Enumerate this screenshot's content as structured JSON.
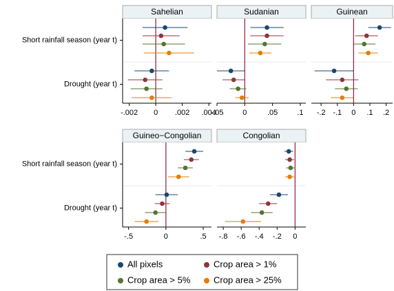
{
  "chart_data": [
    {
      "type": "dot",
      "title": "Sahelian",
      "categories": [
        "Short rainfall season (year t)",
        "Drought (year t)"
      ],
      "xlim": [
        -0.0025,
        0.0042
      ],
      "xticks": [
        {
          "value": -0.002,
          "label": "-.002"
        },
        0,
        {
          "value": 0.002,
          "label": ".002"
        },
        {
          "value": 0.004,
          "label": ".004"
        }
      ],
      "series": [
        {
          "name": "All pixels",
          "color": "#1a476f",
          "values": [
            0.0007,
            -0.0003
          ],
          "errors": [
            0.0017,
            0.0013
          ]
        },
        {
          "name": "Crop area > 1%",
          "color": "#90353b",
          "values": [
            0.0004,
            -0.0008
          ],
          "errors": [
            0.0014,
            0.0013
          ]
        },
        {
          "name": "Crop area > 5%",
          "color": "#55752f",
          "values": [
            0.0006,
            -0.0007
          ],
          "errors": [
            0.0016,
            0.0012
          ]
        },
        {
          "name": "Crop area > 25%",
          "color": "#e37e00",
          "values": [
            0.001,
            -0.0003
          ],
          "errors": [
            0.0019,
            0.0015
          ]
        }
      ]
    },
    {
      "type": "dot",
      "title": "Sudanian",
      "xlim": [
        -0.05,
        0.11
      ],
      "xticks": [
        {
          "value": -0.05,
          "label": "-.05"
        },
        0,
        {
          "value": 0.05,
          "label": ".05"
        },
        {
          "value": 0.1,
          "label": ".1"
        }
      ],
      "series": [
        {
          "color": "#1a476f",
          "values": [
            0.04,
            -0.025
          ],
          "errors": [
            0.03,
            0.025
          ]
        },
        {
          "color": "#90353b",
          "values": [
            0.04,
            -0.02
          ],
          "errors": [
            0.03,
            0.02
          ]
        },
        {
          "color": "#55752f",
          "values": [
            0.036,
            -0.012
          ],
          "errors": [
            0.03,
            0.015
          ]
        },
        {
          "color": "#e37e00",
          "values": [
            0.028,
            -0.005
          ],
          "errors": [
            0.02,
            0.012
          ]
        }
      ]
    },
    {
      "type": "dot",
      "title": "Guinean",
      "xlim": [
        -0.26,
        0.24
      ],
      "xticks": [
        {
          "value": -0.2,
          "label": "-.2"
        },
        {
          "value": -0.1,
          "label": "-.1"
        },
        0,
        {
          "value": 0.1,
          "label": ".1"
        },
        {
          "value": 0.2,
          "label": ".2"
        }
      ],
      "series": [
        {
          "color": "#1a476f",
          "values": [
            0.16,
            -0.12
          ],
          "errors": [
            0.07,
            0.12
          ]
        },
        {
          "color": "#90353b",
          "values": [
            0.08,
            -0.07
          ],
          "errors": [
            0.07,
            0.1
          ]
        },
        {
          "color": "#55752f",
          "values": [
            0.065,
            -0.045
          ],
          "errors": [
            0.07,
            0.07
          ]
        },
        {
          "color": "#e37e00",
          "values": [
            0.09,
            -0.07
          ],
          "errors": [
            0.06,
            0.07
          ]
        }
      ]
    },
    {
      "type": "dot",
      "title": "Guineo−Congolian",
      "categories": [
        "Short rainfall season (year t)",
        "Drought (year t)"
      ],
      "xlim": [
        -0.58,
        0.61
      ],
      "xticks": [
        {
          "value": -0.5,
          "label": "-.5"
        },
        0,
        {
          "value": 0.5,
          "label": ".5"
        }
      ],
      "series": [
        {
          "color": "#1a476f",
          "values": [
            0.38,
            0.01
          ],
          "errors": [
            0.12,
            0.15
          ]
        },
        {
          "color": "#90353b",
          "values": [
            0.34,
            -0.05
          ],
          "errors": [
            0.1,
            0.1
          ]
        },
        {
          "color": "#55752f",
          "values": [
            0.26,
            -0.14
          ],
          "errors": [
            0.1,
            0.14
          ]
        },
        {
          "color": "#e37e00",
          "values": [
            0.17,
            -0.26
          ],
          "errors": [
            0.14,
            0.16
          ]
        }
      ]
    },
    {
      "type": "dot",
      "title": "Congolian",
      "xlim": [
        -0.87,
        0.12
      ],
      "xticks": [
        {
          "value": -0.8,
          "label": "-.8"
        },
        {
          "value": -0.6,
          "label": "-.6"
        },
        {
          "value": -0.4,
          "label": "-.4"
        },
        {
          "value": -0.2,
          "label": "-.2"
        },
        0
      ],
      "series": [
        {
          "color": "#1a476f",
          "values": [
            -0.07,
            -0.18
          ],
          "errors": [
            0.05,
            0.1
          ]
        },
        {
          "color": "#90353b",
          "values": [
            -0.06,
            -0.3
          ],
          "errors": [
            0.05,
            0.1
          ]
        },
        {
          "color": "#55752f",
          "values": [
            -0.05,
            -0.37
          ],
          "errors": [
            0.05,
            0.12
          ]
        },
        {
          "color": "#e37e00",
          "values": [
            -0.06,
            -0.58
          ],
          "errors": [
            0.05,
            0.2
          ]
        }
      ]
    }
  ]
}
